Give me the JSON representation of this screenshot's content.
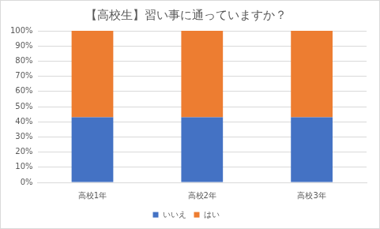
{
  "chart_data": {
    "type": "bar",
    "title": "【高校生】習い事に通っていますか？",
    "categories": [
      "高校1年",
      "高校2年",
      "高校3年"
    ],
    "series": [
      {
        "name": "いいえ",
        "color": "#4472c4",
        "values": [
          43,
          43,
          43
        ]
      },
      {
        "name": "はい",
        "color": "#ed7d31",
        "values": [
          57,
          57,
          57
        ]
      }
    ],
    "ylim": [
      0,
      100
    ],
    "yticks": [
      {
        "value": 0,
        "label": "0%"
      },
      {
        "value": 10,
        "label": "10%"
      },
      {
        "value": 20,
        "label": "20%"
      },
      {
        "value": 30,
        "label": "30%"
      },
      {
        "value": 40,
        "label": "40%"
      },
      {
        "value": 50,
        "label": "50%"
      },
      {
        "value": 60,
        "label": "60%"
      },
      {
        "value": 70,
        "label": "70%"
      },
      {
        "value": 80,
        "label": "80%"
      },
      {
        "value": 90,
        "label": "90%"
      },
      {
        "value": 100,
        "label": "100%"
      }
    ],
    "stacked": true,
    "grid": true,
    "legend": "bottom"
  }
}
